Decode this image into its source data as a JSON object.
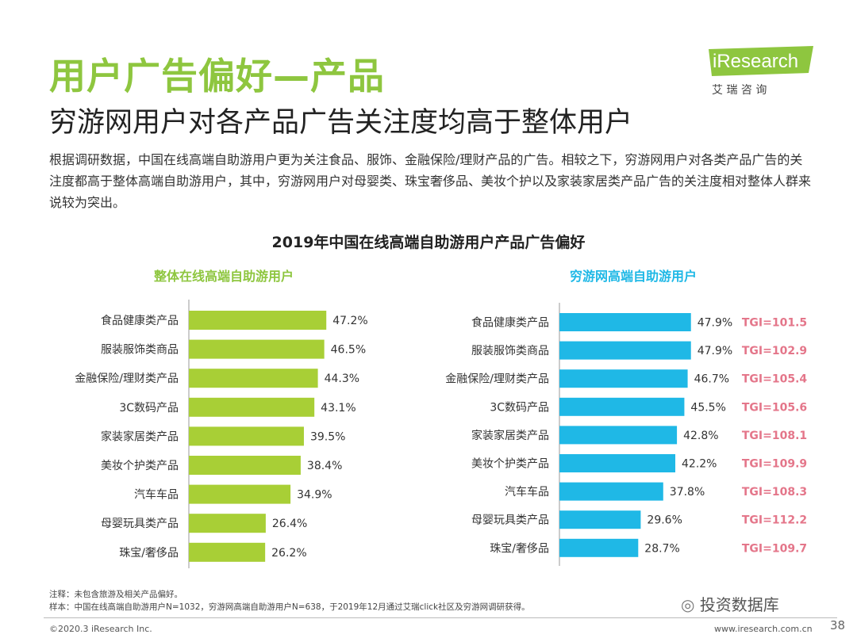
{
  "title": "用户广告偏好—产品",
  "subtitle": "穷游网用户对各产品广告关注度均高于整体用户",
  "body": "根据调研数据，中国在线高端自助游用户更为关注食品、服饰、金融保险/理财产品的广告。相较之下，穷游网用户对各类产品广告的关注度都高于整体高端自助游用户，其中，穷游网用户对母婴类、珠宝奢侈品、美妆个护以及家装家居类产品广告的关注度相对整体人群来说较为突出。",
  "logo": {
    "name": "iResearch",
    "subtitle": "艾 瑞 咨 询"
  },
  "colors": {
    "title_green": "#8ec63f",
    "bar_green": "#a8cf36",
    "bar_blue": "#1fb8e6",
    "tgi_red": "#e4768a"
  },
  "chart_data": {
    "type": "bar",
    "orientation": "horizontal",
    "title": "2019年中国在线高端自助游用户产品广告偏好",
    "unit": "%",
    "panels": [
      {
        "name": "整体在线高端自助游用户",
        "categories": [
          "食品健康类产品",
          "服装服饰类商品",
          "金融保险/理财类产品",
          "3C数码产品",
          "家装家居类产品",
          "美妆个护类产品",
          "汽车车品",
          "母婴玩具类产品",
          "珠宝/奢侈品"
        ],
        "values": [
          47.2,
          46.5,
          44.3,
          43.1,
          39.5,
          38.4,
          34.9,
          26.4,
          26.2
        ],
        "labels": [
          "47.2%",
          "46.5%",
          "44.3%",
          "43.1%",
          "39.5%",
          "38.4%",
          "34.9%",
          "26.4%",
          "26.2%"
        ]
      },
      {
        "name": "穷游网高端自助游用户",
        "categories": [
          "食品健康类产品",
          "服装服饰类商品",
          "金融保险/理财类产品",
          "3C数码产品",
          "家装家居类产品",
          "美妆个护类产品",
          "汽车车品",
          "母婴玩具类产品",
          "珠宝/奢侈品"
        ],
        "values": [
          47.9,
          47.9,
          46.7,
          45.5,
          42.8,
          42.2,
          37.8,
          29.6,
          28.7
        ],
        "labels": [
          "47.9%",
          "47.9%",
          "46.7%",
          "45.5%",
          "42.8%",
          "42.2%",
          "37.8%",
          "29.6%",
          "28.7%"
        ],
        "tgi": [
          "TGI=101.5",
          "TGI=102.9",
          "TGI=105.4",
          "TGI=105.6",
          "TGI=108.1",
          "TGI=109.9",
          "TGI=108.3",
          "TGI=112.2",
          "TGI=109.7"
        ]
      }
    ]
  },
  "notes": {
    "note": "注释：未包含旅游及相关产品偏好。",
    "sample": "样本：中国在线高端自助游用户N=1032，穷游网高端自助游用户N=638，于2019年12月通过艾瑞click社区及穷游网调研获得。"
  },
  "footer": {
    "copyright": "©2020.3 iResearch Inc.",
    "website": "www.iresearch.com.cn",
    "page": "38"
  },
  "watermark": "投资数据库"
}
